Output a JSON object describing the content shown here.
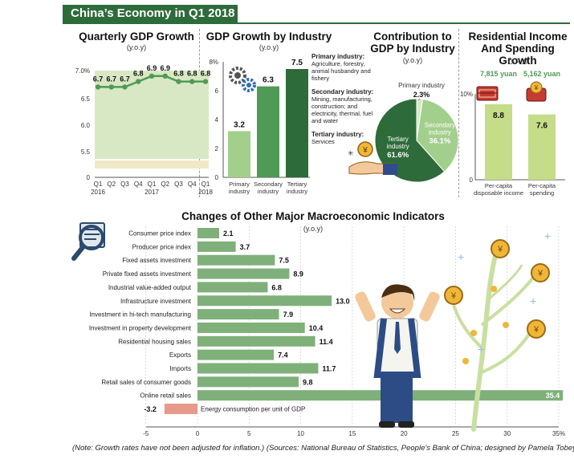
{
  "page": {
    "banner": "China’s Economy in Q1 2018",
    "note": "(Note: Growth rates have not been adjusted for inflation.)  (Sources: National Bureau of Statistics, People’s Bank of China; designed by Pamela Tobey)"
  },
  "colors": {
    "dark_green": "#2e6b3a",
    "mid_green": "#4f9a55",
    "light_green": "#a3cf8c",
    "pale_green": "#d8e8c5",
    "bar_green": "#7fb07a",
    "negative": "#e79a8a",
    "lime": "#c5dc88",
    "accent_gold": "#f0b63a"
  },
  "chart_data": [
    {
      "type": "line",
      "title": "Quarterly GDP Growth",
      "subtitle": "(y.o.y)",
      "categories": [
        "Q1\n2016",
        "Q2",
        "Q3",
        "Q4",
        "Q1\n2017",
        "Q2",
        "Q3",
        "Q4",
        "Q1\n2018"
      ],
      "values": [
        6.7,
        6.7,
        6.7,
        6.8,
        6.9,
        6.9,
        6.8,
        6.8,
        6.8
      ],
      "value_labels": [
        "6.7",
        "6.7",
        "6.7",
        "6.8",
        "6.9",
        "6.9",
        "6.8",
        "6.8",
        "6.8"
      ],
      "yticks": [
        "7.0%",
        "6.5",
        "6.0",
        "5.5",
        "0"
      ],
      "ylim": [
        5.2,
        7.0
      ],
      "axis_break": true
    },
    {
      "type": "bar",
      "title": "GDP Growth by Industry",
      "subtitle": "(y.o.y)",
      "categories": [
        "Primary industry",
        "Secondary industry",
        "Tertiary industry"
      ],
      "values": [
        3.2,
        6.3,
        7.5
      ],
      "value_labels": [
        "3.2",
        "6.3",
        "7.5"
      ],
      "yticks": [
        "8%",
        "6",
        "4",
        "2",
        "0"
      ],
      "ylim": [
        0,
        8
      ],
      "notes": [
        {
          "head": "Primary industry:",
          "body": "Agriculture, forestry, animal husbandry and fishery"
        },
        {
          "head": "Secondary industry:",
          "body": "Mining, manufacturing, construction; and electricity, thermal, fuel and water"
        },
        {
          "head": "Tertiary industry:",
          "body": "Services"
        }
      ]
    },
    {
      "type": "pie",
      "title": "Contribution to GDP by Industry",
      "subtitle": "(y.o.y)",
      "slices": [
        {
          "name": "Primary industry",
          "value": 2.3,
          "label": "2.3%"
        },
        {
          "name": "Secondary industry",
          "value": 36.1,
          "label": "36.1%"
        },
        {
          "name": "Tertiary industry",
          "value": 61.6,
          "label": "61.6%"
        }
      ]
    },
    {
      "type": "bar",
      "title": "Residential Income And Spending Growth",
      "subtitle": "(y.o.y)",
      "categories": [
        "Per-capita disposable income",
        "Per-capita spending"
      ],
      "values": [
        8.8,
        7.6
      ],
      "value_labels": [
        "8.8",
        "7.6"
      ],
      "amounts": [
        "7,815 yuan",
        "5,162 yuan"
      ],
      "yticks": [
        "10%",
        "0"
      ],
      "ylim": [
        0,
        10
      ]
    },
    {
      "type": "bar",
      "orientation": "horizontal",
      "title": "Changes of Other Major Macroeconomic Indicators",
      "subtitle": "(y.o.y)",
      "categories": [
        "Consumer price index",
        "Producer price index",
        "Fixed assets investment",
        "Private fixed assets investment",
        "Industrial value-added output",
        "Infrastructure investment",
        "Investment in hi-tech manufacturing",
        "Investment in property development",
        "Residential housing sales",
        "Exports",
        "Imports",
        "Retail sales of consumer goods",
        "Online retail sales",
        "Energy consumption per unit of GDP"
      ],
      "values": [
        2.1,
        3.7,
        7.5,
        8.9,
        6.8,
        13.0,
        7.9,
        10.4,
        11.4,
        7.4,
        11.7,
        9.8,
        35.4,
        -3.2
      ],
      "value_labels": [
        "2.1",
        "3.7",
        "7.5",
        "8.9",
        "6.8",
        "13.0",
        "7.9",
        "10.4",
        "11.4",
        "7.4",
        "11.7",
        "9.8",
        "35.4",
        "-3.2"
      ],
      "xticks": [
        "-5",
        "0",
        "5",
        "10",
        "15",
        "20",
        "25",
        "30",
        "35%"
      ],
      "xlim": [
        -5,
        35
      ]
    }
  ]
}
